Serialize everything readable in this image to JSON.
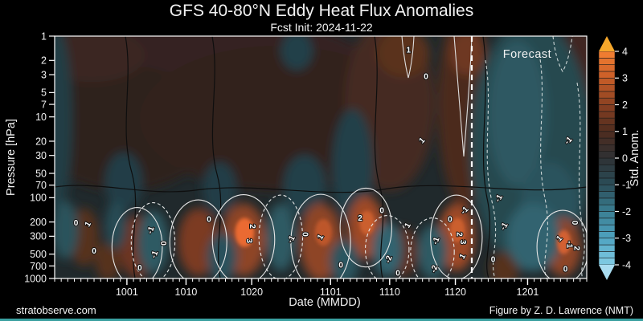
{
  "footer": {
    "left": "stratobserve.com",
    "right": "Figure by Z. D. Lawrence (NMT)",
    "accent_bar_color": "#3aa0a0"
  },
  "chart_data": {
    "type": "heatmap",
    "title": "GFS 40-80°N Eddy Heat Flux Anomalies",
    "subtitle": "Fcst Init: 2024-11-22",
    "xlabel": "Date (MMDD)",
    "ylabel": "Pressure [hPa]",
    "y_scale": "log",
    "y_range": [
      1,
      1000
    ],
    "y_ticks": [
      1,
      2,
      3,
      5,
      7,
      10,
      20,
      30,
      50,
      70,
      100,
      200,
      300,
      500,
      700,
      1000
    ],
    "x_start_date": "0920",
    "x_end_date": "1210",
    "total_days": 81,
    "x_ticks": [
      {
        "label": "1001",
        "day": 11
      },
      {
        "label": "1010",
        "day": 20
      },
      {
        "label": "1020",
        "day": 30
      },
      {
        "label": "1101",
        "day": 42
      },
      {
        "label": "1110",
        "day": 51
      },
      {
        "label": "1120",
        "day": 61
      },
      {
        "label": "1201",
        "day": 72
      }
    ],
    "forecast_day": 63.5,
    "forecast_label": "Forecast",
    "background_color": "#20292c",
    "colorbar": {
      "label": "Std. Anom.",
      "min": -4,
      "max": 4,
      "step": 0.25,
      "ticks": [
        -4,
        -3,
        -2,
        -1,
        0,
        1,
        2,
        3,
        4
      ],
      "stops": {
        "-4": "#82cde6",
        "-3": "#4fa3c0",
        "-2": "#3a7e92",
        "-1": "#2b4d58",
        "0": "#2e3134",
        "1": "#4f2c1f",
        "2": "#8a4122",
        "3": "#c85d28",
        "4": "#f58032"
      },
      "under_color": "#a9ddf1",
      "over_color": "#f6a72b"
    },
    "features": [
      {
        "x": 0.3,
        "y": 0.14,
        "rx": 0.3,
        "ry": 0.22,
        "c": "#342420"
      },
      {
        "x": 0.13,
        "y": 0.38,
        "rx": 0.17,
        "ry": 0.26,
        "c": "#2e221e"
      },
      {
        "x": 0.42,
        "y": 0.34,
        "rx": 0.26,
        "ry": 0.3,
        "c": "#30231e"
      },
      {
        "x": 0.63,
        "y": 0.28,
        "rx": 0.085,
        "ry": 0.36,
        "c": "#452a20"
      },
      {
        "x": 0.655,
        "y": 0.07,
        "rx": 0.05,
        "ry": 0.1,
        "c": "#5a311f"
      },
      {
        "x": 0.77,
        "y": 0.28,
        "rx": 0.05,
        "ry": 0.42,
        "c": "#4c2b1e"
      },
      {
        "x": 0.775,
        "y": 0.07,
        "rx": 0.032,
        "ry": 0.09,
        "c": "#6e3722"
      },
      {
        "x": 0.985,
        "y": 0.12,
        "rx": 0.04,
        "ry": 0.16,
        "c": "#402720"
      },
      {
        "x": 0.07,
        "y": 0.08,
        "rx": 0.1,
        "ry": 0.11,
        "c": "#3a2720"
      },
      {
        "x": 0.895,
        "y": 0.45,
        "rx": 0.115,
        "ry": 0.52,
        "c": "#264850"
      },
      {
        "x": 0.87,
        "y": 0.32,
        "rx": 0.055,
        "ry": 0.3,
        "c": "#2d5962"
      },
      {
        "x": 0.93,
        "y": 0.72,
        "rx": 0.055,
        "ry": 0.2,
        "c": "#2b535d"
      },
      {
        "x": 0.005,
        "y": 0.35,
        "rx": 0.028,
        "ry": 0.38,
        "c": "#243e45"
      },
      {
        "x": 0.56,
        "y": 0.54,
        "rx": 0.038,
        "ry": 0.24,
        "c": "#24414a"
      },
      {
        "x": 0.455,
        "y": 0.06,
        "rx": 0.03,
        "ry": 0.08,
        "c": "#24414a"
      },
      {
        "x": 0.13,
        "y": 0.6,
        "rx": 0.035,
        "ry": 0.12,
        "c": "#243e46"
      },
      {
        "x": 0.31,
        "y": 0.63,
        "rx": 0.032,
        "ry": 0.11,
        "c": "#243e46"
      },
      {
        "x": 0.47,
        "y": 0.62,
        "rx": 0.04,
        "ry": 0.13,
        "c": "#24414a"
      },
      {
        "x": 0.055,
        "y": 0.83,
        "rx": 0.028,
        "ry": 0.12,
        "c": "#56301f"
      },
      {
        "x": 0.1,
        "y": 0.93,
        "rx": 0.024,
        "ry": 0.08,
        "c": "#56301f"
      },
      {
        "x": 0.155,
        "y": 0.87,
        "rx": 0.033,
        "ry": 0.13,
        "c": "#6d3622",
        "outline": "solid"
      },
      {
        "x": 0.27,
        "y": 0.85,
        "rx": 0.038,
        "ry": 0.14,
        "c": "#7c3b23",
        "outline": "solid"
      },
      {
        "x": 0.355,
        "y": 0.84,
        "rx": 0.042,
        "ry": 0.15,
        "c": "#8e4425",
        "outline": "solid"
      },
      {
        "x": 0.357,
        "y": 0.81,
        "rx": 0.018,
        "ry": 0.06,
        "c": "#ea6a30",
        "sharp": true
      },
      {
        "x": 0.5,
        "y": 0.85,
        "rx": 0.04,
        "ry": 0.16,
        "c": "#8e4425",
        "outline": "solid"
      },
      {
        "x": 0.505,
        "y": 0.81,
        "rx": 0.016,
        "ry": 0.055,
        "c": "#bd572b",
        "sharp": true
      },
      {
        "x": 0.585,
        "y": 0.79,
        "rx": 0.034,
        "ry": 0.13,
        "c": "#9e4a27",
        "outline": "solid"
      },
      {
        "x": 0.587,
        "y": 0.77,
        "rx": 0.014,
        "ry": 0.05,
        "c": "#cb5e2d",
        "sharp": true
      },
      {
        "x": 0.655,
        "y": 0.89,
        "rx": 0.028,
        "ry": 0.1,
        "c": "#5e3220"
      },
      {
        "x": 0.755,
        "y": 0.83,
        "rx": 0.034,
        "ry": 0.14,
        "c": "#9e4a27",
        "outline": "solid"
      },
      {
        "x": 0.757,
        "y": 0.8,
        "rx": 0.014,
        "ry": 0.05,
        "c": "#cb5e2d",
        "sharp": true
      },
      {
        "x": 0.845,
        "y": 0.96,
        "rx": 0.028,
        "ry": 0.07,
        "c": "#56301f"
      },
      {
        "x": 0.955,
        "y": 0.87,
        "rx": 0.034,
        "ry": 0.12,
        "c": "#8e4425",
        "outline": "solid"
      },
      {
        "x": 0.957,
        "y": 0.85,
        "rx": 0.013,
        "ry": 0.05,
        "c": "#d26030",
        "sharp": true
      },
      {
        "x": 0.02,
        "y": 0.8,
        "rx": 0.024,
        "ry": 0.12,
        "c": "#2a525c"
      },
      {
        "x": 0.115,
        "y": 0.78,
        "rx": 0.02,
        "ry": 0.1,
        "c": "#284b55"
      },
      {
        "x": 0.185,
        "y": 0.85,
        "rx": 0.028,
        "ry": 0.13,
        "c": "#2d5a64",
        "outline": "dashed"
      },
      {
        "x": 0.315,
        "y": 0.91,
        "rx": 0.028,
        "ry": 0.1,
        "c": "#29515b"
      },
      {
        "x": 0.425,
        "y": 0.83,
        "rx": 0.028,
        "ry": 0.14,
        "c": "#2d5a64",
        "outline": "dashed"
      },
      {
        "x": 0.545,
        "y": 0.93,
        "rx": 0.028,
        "ry": 0.09,
        "c": "#2b555f"
      },
      {
        "x": 0.625,
        "y": 0.88,
        "rx": 0.028,
        "ry": 0.11,
        "c": "#316470",
        "outline": "dashed"
      },
      {
        "x": 0.71,
        "y": 0.89,
        "rx": 0.028,
        "ry": 0.11,
        "c": "#2d5a64",
        "outline": "dashed"
      },
      {
        "x": 0.9,
        "y": 0.83,
        "rx": 0.05,
        "ry": 0.14,
        "c": "#316470"
      }
    ],
    "contour_labels": [
      {
        "t": "1",
        "x": 0.665,
        "y": 0.056,
        "r": 0
      },
      {
        "t": "0",
        "x": 0.698,
        "y": 0.165,
        "r": 0
      },
      {
        "t": "1",
        "x": 0.69,
        "y": 0.43,
        "r": -45
      },
      {
        "t": "0",
        "x": 0.04,
        "y": 0.77,
        "r": 0
      },
      {
        "t": "1",
        "x": 0.062,
        "y": 0.775,
        "r": -60
      },
      {
        "t": "0",
        "x": 0.074,
        "y": 0.885,
        "r": 0
      },
      {
        "t": "0",
        "x": 0.16,
        "y": 0.955,
        "r": 0
      },
      {
        "t": "-1",
        "x": 0.18,
        "y": 0.8,
        "r": -70
      },
      {
        "t": "-1",
        "x": 0.187,
        "y": 0.9,
        "r": -70
      },
      {
        "t": "0",
        "x": 0.205,
        "y": 0.855,
        "r": 90
      },
      {
        "t": "0",
        "x": 0.29,
        "y": 0.755,
        "r": 0
      },
      {
        "t": "2",
        "x": 0.372,
        "y": 0.785,
        "r": 90
      },
      {
        "t": "3",
        "x": 0.366,
        "y": 0.845,
        "r": 90
      },
      {
        "t": "-1",
        "x": 0.444,
        "y": 0.838,
        "r": -60
      },
      {
        "t": "0",
        "x": 0.471,
        "y": 0.818,
        "r": 90
      },
      {
        "t": "1",
        "x": 0.499,
        "y": 0.828,
        "r": -60
      },
      {
        "t": "2",
        "x": 0.574,
        "y": 0.75,
        "r": 0
      },
      {
        "t": "0",
        "x": 0.538,
        "y": 0.944,
        "r": 0
      },
      {
        "t": "0",
        "x": 0.615,
        "y": 0.718,
        "r": 0
      },
      {
        "t": "-2",
        "x": 0.627,
        "y": 0.92,
        "r": -70
      },
      {
        "t": "1",
        "x": 0.663,
        "y": 0.78,
        "r": -60
      },
      {
        "t": "0",
        "x": 0.645,
        "y": 0.977,
        "r": 0
      },
      {
        "t": "-1",
        "x": 0.716,
        "y": 0.844,
        "r": -70
      },
      {
        "t": "-2",
        "x": 0.713,
        "y": 0.96,
        "r": -70
      },
      {
        "t": "0",
        "x": 0.743,
        "y": 0.755,
        "r": 0
      },
      {
        "t": "2",
        "x": 0.761,
        "y": 0.818,
        "r": 90
      },
      {
        "t": "3",
        "x": 0.768,
        "y": 0.85,
        "r": 90
      },
      {
        "t": "1",
        "x": 0.766,
        "y": 0.908,
        "r": -60
      },
      {
        "t": "-1",
        "x": 0.77,
        "y": 0.718,
        "r": -45
      },
      {
        "t": "-1",
        "x": 0.965,
        "y": 0.43,
        "r": -45
      },
      {
        "t": "-1",
        "x": 0.834,
        "y": 0.668,
        "r": -60
      },
      {
        "t": "-1",
        "x": 0.844,
        "y": 0.784,
        "r": -60
      },
      {
        "t": "1",
        "x": 0.948,
        "y": 0.834,
        "r": -45
      },
      {
        "t": "0",
        "x": 0.978,
        "y": 0.77,
        "r": 90
      },
      {
        "t": "-1",
        "x": 0.968,
        "y": 0.86,
        "r": 90
      },
      {
        "t": "2",
        "x": 0.982,
        "y": 0.875,
        "r": 90
      },
      {
        "t": "0",
        "x": 0.824,
        "y": 0.92,
        "r": 0
      },
      {
        "t": "0",
        "x": 0.96,
        "y": 0.96,
        "r": 0
      }
    ]
  }
}
